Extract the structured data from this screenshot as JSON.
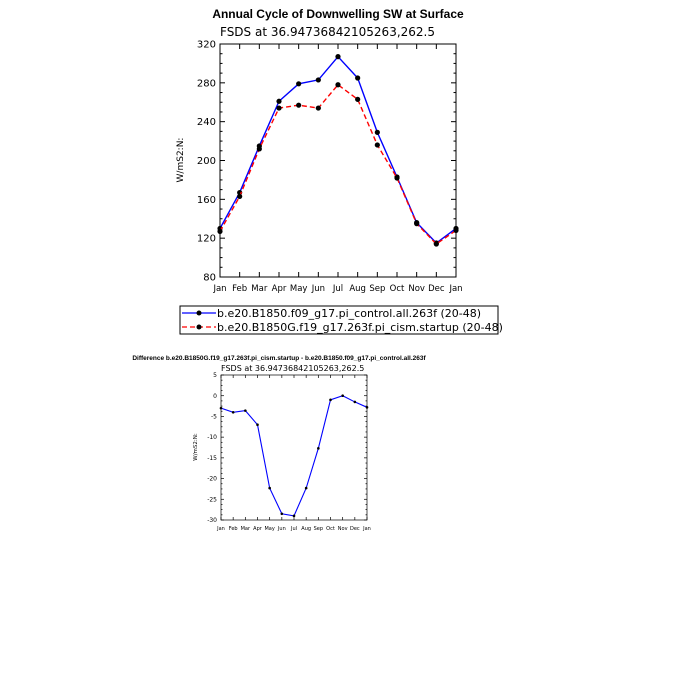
{
  "chart_data": [
    {
      "type": "line",
      "title": "Annual Cycle of Downwelling SW at Surface",
      "subtitle": "FSDS at 36.94736842105263,262.5",
      "ylabel": "W/mS2:N:",
      "categories": [
        "Jan",
        "Feb",
        "Mar",
        "Apr",
        "May",
        "Jun",
        "Jul",
        "Aug",
        "Sep",
        "Oct",
        "Nov",
        "Dec",
        "Jan"
      ],
      "ylim": [
        80,
        320
      ],
      "yticks": [
        "80",
        "120",
        "160",
        "200",
        "240",
        "280",
        "320"
      ],
      "series": [
        {
          "name": "b.e20.B1850.f09_g17.pi_control.all.263f (20-48)",
          "color": "#0000ff",
          "dash": "solid",
          "values": [
            130,
            167,
            215,
            261,
            279,
            283,
            307,
            285,
            229,
            183,
            136,
            115,
            130
          ]
        },
        {
          "name": "b.e20.B1850G.f19_g17.263f.pi_cism.startup (20-48)",
          "color": "#ff0000",
          "dash": "dashed",
          "values": [
            127,
            163,
            212,
            254,
            257,
            254,
            278,
            263,
            216,
            182,
            135,
            114,
            128
          ]
        }
      ],
      "legend": "below"
    },
    {
      "type": "line",
      "title": "Difference b.e20.B1850G.f19_g17.263f.pi_cism.startup - b.e20.B1850.f09_g17.pi_control.all.263f",
      "subtitle": "FSDS at 36.94736842105263,262.5",
      "ylabel": "W/mS2:N:",
      "categories": [
        "Jan",
        "Feb",
        "Mar",
        "Apr",
        "May",
        "Jun",
        "Jul",
        "Aug",
        "Sep",
        "Oct",
        "Nov",
        "Dec",
        "Jan"
      ],
      "ylim": [
        -30,
        5
      ],
      "yticks": [
        "-30",
        "-25",
        "-20",
        "-15",
        "-10",
        "-5",
        "0",
        "5"
      ],
      "series": [
        {
          "color": "#0000ff",
          "values": [
            -3,
            -4,
            -3.6,
            -7,
            -22.3,
            -28.5,
            -29,
            -22.3,
            -12.7,
            -1,
            0,
            -1.5,
            -2.8
          ]
        }
      ]
    }
  ]
}
